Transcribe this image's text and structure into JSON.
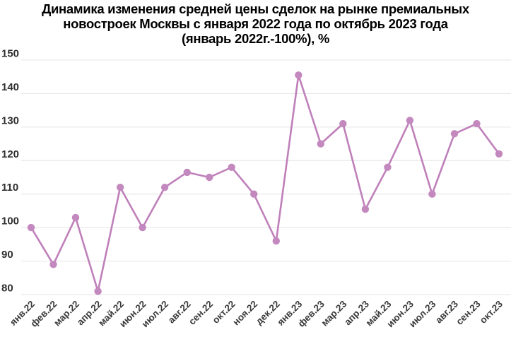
{
  "chart_data": {
    "type": "line",
    "title": "Динамика изменения средней цены сделок на рынке премиальных новостроек Москвы с января 2022 года по октябрь 2023 года (январь 2022г.-100%), %",
    "title_lines": [
      "Динамика изменения средней цены сделок на рынке премиальных",
      "новостроек Москвы с января 2022 года по октябрь 2023 года",
      "(январь 2022г.-100%), %"
    ],
    "categories": [
      "янв.22",
      "фев.22",
      "мар.22",
      "апр.22",
      "май.22",
      "июн.22",
      "июл.22",
      "авг.22",
      "сен.22",
      "окт.22",
      "ноя.22",
      "дек.22",
      "янв.23",
      "фев.23",
      "мар.23",
      "апр.23",
      "май.23",
      "июн.23",
      "июл.23",
      "авг.23",
      "сен.23",
      "окт.23"
    ],
    "values": [
      100,
      89,
      103,
      81,
      112,
      100,
      112,
      116.5,
      115,
      118,
      110,
      96,
      145.5,
      125,
      131,
      105.5,
      118,
      132,
      110,
      128,
      131,
      122
    ],
    "xlabel": "",
    "ylabel": "",
    "ylim": [
      80,
      150
    ],
    "ytick_step": 10,
    "ytick_labels": [
      "80",
      "90",
      "100",
      "110",
      "120",
      "130",
      "140",
      "150"
    ],
    "grid": "horizontal",
    "legend": "none",
    "line_color": "#bf80ba",
    "point_color": "#c389bf",
    "grid_color": "#e4e4e4",
    "axis_label_color": "#2f2f2f",
    "title_color": "#000000",
    "background": "#ffffff"
  }
}
